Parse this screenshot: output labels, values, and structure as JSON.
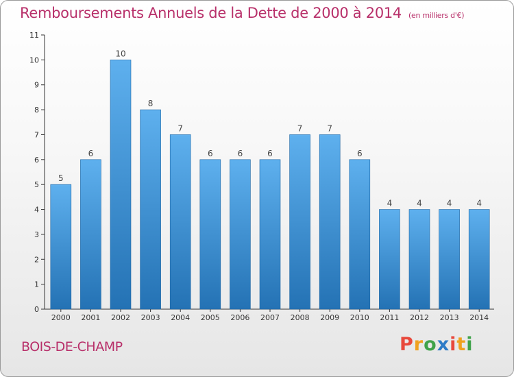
{
  "title": "Remboursements Annuels de la Dette de 2000 à 2014",
  "subtitle": "(en milliers d'€)",
  "town": "BOIS-DE-CHAMP",
  "logo_letters": [
    "P",
    "r",
    "o",
    "x",
    "i",
    "t",
    "i"
  ],
  "colors": {
    "title": "#b8306a",
    "bar_top": "#5eb0ee",
    "bar_bottom": "#2472b4"
  },
  "chart_data": {
    "type": "bar",
    "title": "Remboursements Annuels de la Dette de 2000 à 2014",
    "subtitle": "(en milliers d'€)",
    "categories": [
      "2000",
      "2001",
      "2002",
      "2003",
      "2004",
      "2005",
      "2006",
      "2007",
      "2008",
      "2009",
      "2010",
      "2011",
      "2012",
      "2013",
      "2014"
    ],
    "values": [
      5,
      6,
      10,
      8,
      7,
      6,
      6,
      6,
      7,
      7,
      6,
      4,
      4,
      4,
      4
    ],
    "yticks": [
      0,
      1,
      2,
      3,
      4,
      5,
      6,
      7,
      8,
      9,
      10,
      11
    ],
    "ylim": [
      0,
      11
    ],
    "grid": false,
    "xlabel": "",
    "ylabel": ""
  }
}
